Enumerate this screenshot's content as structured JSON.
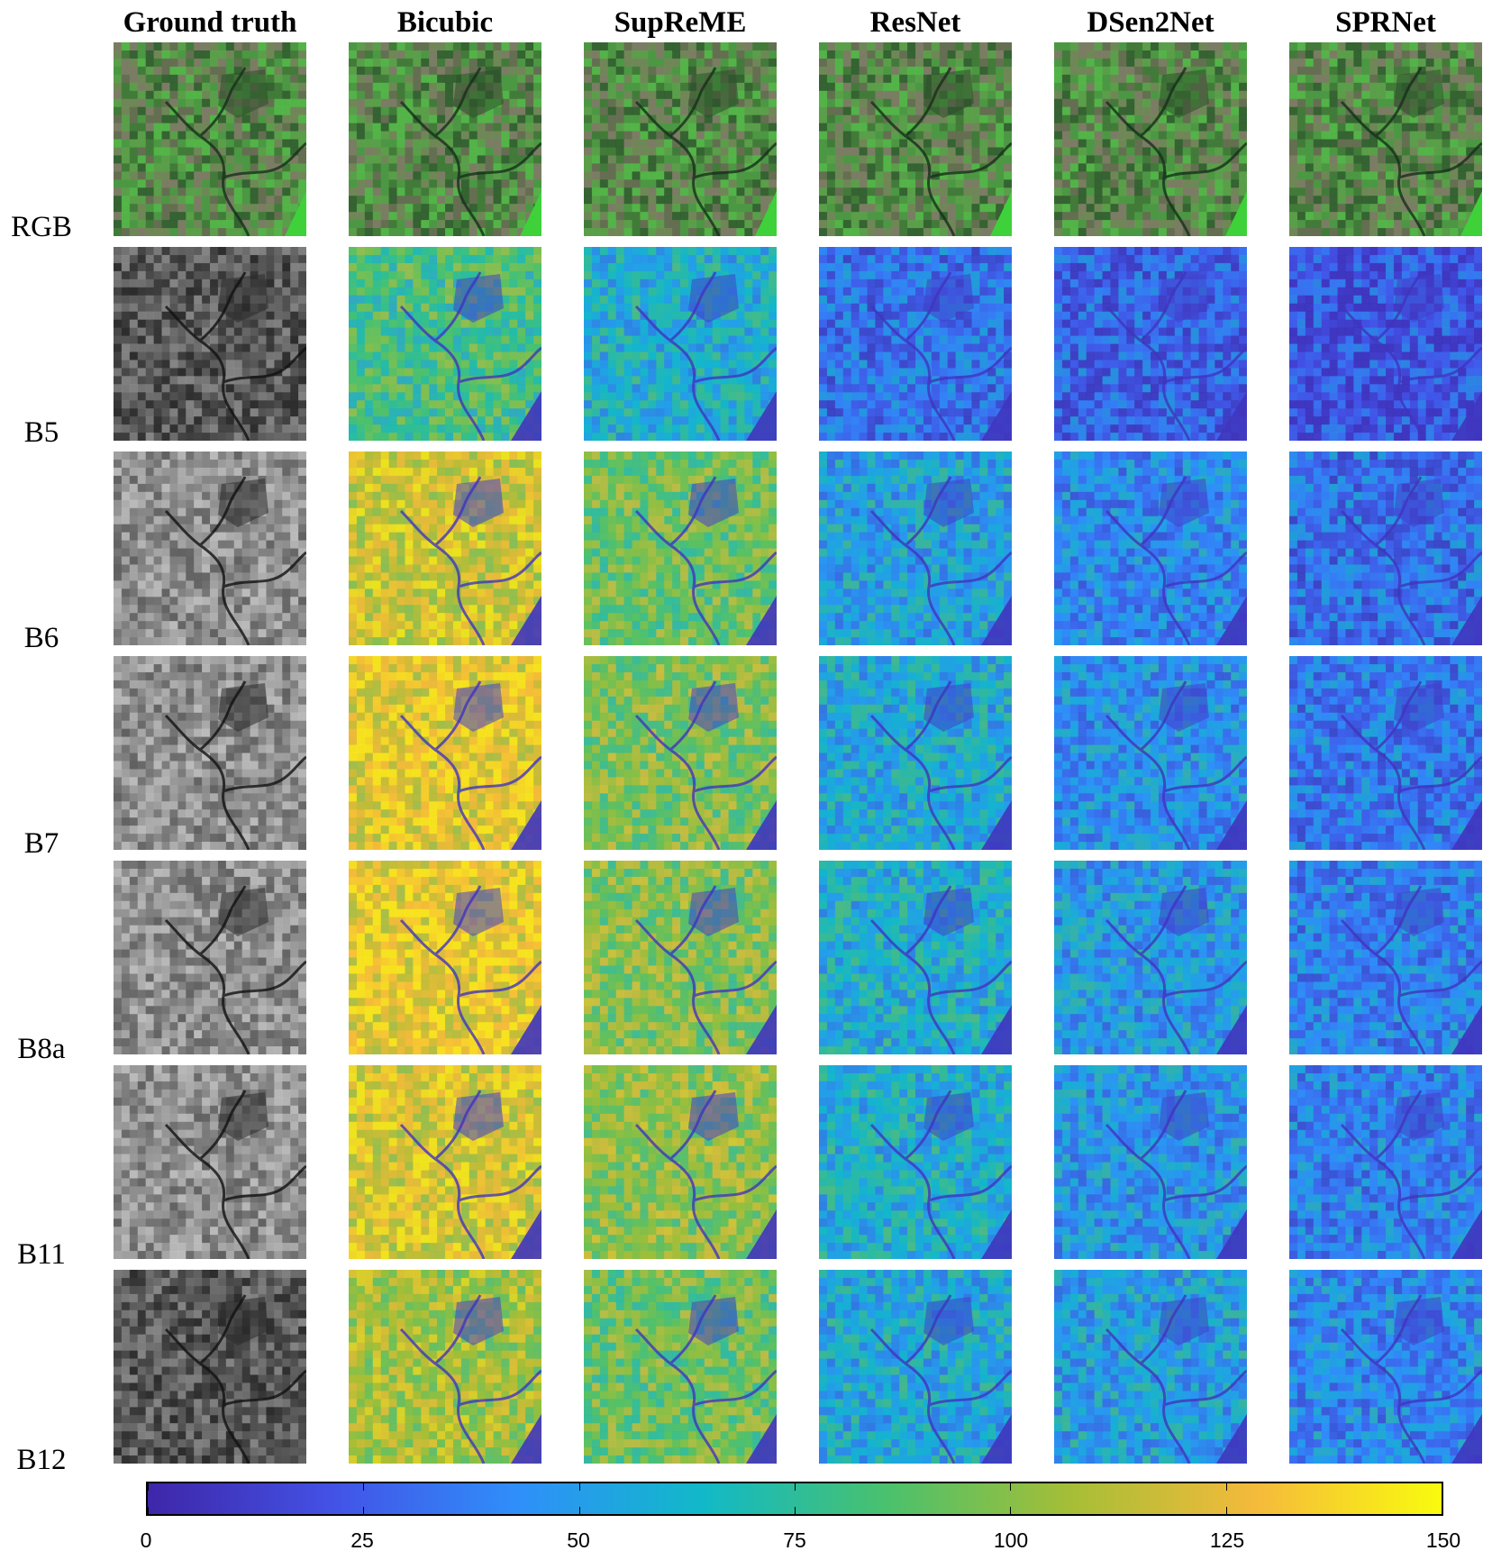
{
  "columns": [
    "Ground truth",
    "Bicubic",
    "SupReME",
    "ResNet",
    "DSen2Net",
    "SPRNet"
  ],
  "rows": [
    "RGB",
    "B5",
    "B6",
    "B7",
    "B8a",
    "B11",
    "B12"
  ],
  "colorbar": {
    "min": 0,
    "max": 150,
    "ticks": [
      "0",
      "25",
      "50",
      "75",
      "100",
      "125",
      "150"
    ],
    "colors": [
      "#3e26a8",
      "#4352e6",
      "#2f8ffa",
      "#11b9c8",
      "#4ac16d",
      "#a6be36",
      "#f5ba3b",
      "#f9fb0e"
    ]
  },
  "error_level": {
    "Bicubic": {
      "RGB": 0,
      "B5": 0.55,
      "B6": 0.8,
      "B7": 0.85,
      "B8a": 0.86,
      "B11": 0.82,
      "B12": 0.72
    },
    "SupReME": {
      "RGB": 0,
      "B5": 0.4,
      "B6": 0.62,
      "B7": 0.65,
      "B8a": 0.66,
      "B11": 0.68,
      "B12": 0.62
    },
    "ResNet": {
      "RGB": 0,
      "B5": 0.22,
      "B6": 0.35,
      "B7": 0.38,
      "B8a": 0.4,
      "B11": 0.4,
      "B12": 0.38
    },
    "DSen2Net": {
      "RGB": 0,
      "B5": 0.18,
      "B6": 0.28,
      "B7": 0.3,
      "B8a": 0.33,
      "B11": 0.32,
      "B12": 0.35
    },
    "SPRNet": {
      "RGB": 0,
      "B5": 0.14,
      "B6": 0.22,
      "B7": 0.24,
      "B8a": 0.26,
      "B11": 0.26,
      "B12": 0.28
    }
  }
}
